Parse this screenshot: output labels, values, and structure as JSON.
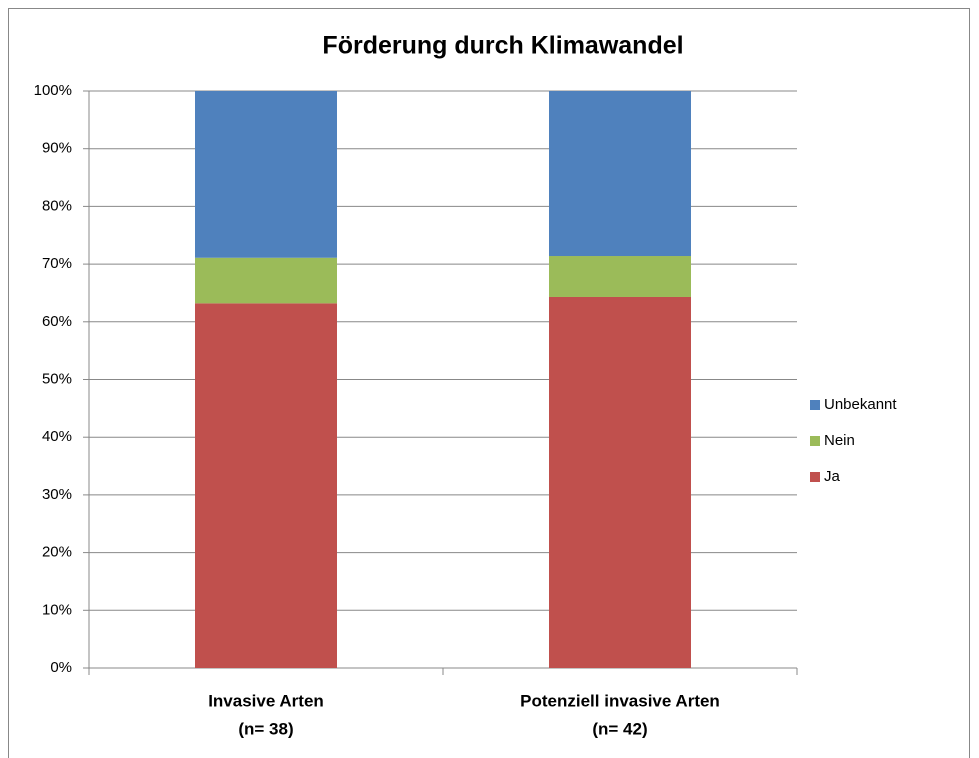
{
  "chart_data": {
    "type": "stacked_bar",
    "title": "Förderung durch Klimawandel",
    "categories": [
      [
        "Invasive Arten",
        "(n= 38)"
      ],
      [
        "Potenziell invasive Arten",
        "(n= 42)"
      ]
    ],
    "series": [
      {
        "name": "Ja",
        "color": "#c0504d",
        "values": [
          63.2,
          64.3
        ]
      },
      {
        "name": "Nein",
        "color": "#9bbb59",
        "values": [
          7.9,
          7.1
        ]
      },
      {
        "name": "Unbekannt",
        "color": "#4f81bd",
        "values": [
          28.9,
          28.6
        ]
      }
    ],
    "ylim": [
      0,
      100
    ],
    "yticks": [
      {
        "value": 0,
        "label": "0%"
      },
      {
        "value": 10,
        "label": "10%"
      },
      {
        "value": 20,
        "label": "20%"
      },
      {
        "value": 30,
        "label": "30%"
      },
      {
        "value": 40,
        "label": "40%"
      },
      {
        "value": 50,
        "label": "50%"
      },
      {
        "value": 60,
        "label": "60%"
      },
      {
        "value": 70,
        "label": "70%"
      },
      {
        "value": 80,
        "label": "80%"
      },
      {
        "value": 90,
        "label": "90%"
      },
      {
        "value": 100,
        "label": "100%"
      }
    ],
    "grid": true,
    "legend": "right"
  }
}
